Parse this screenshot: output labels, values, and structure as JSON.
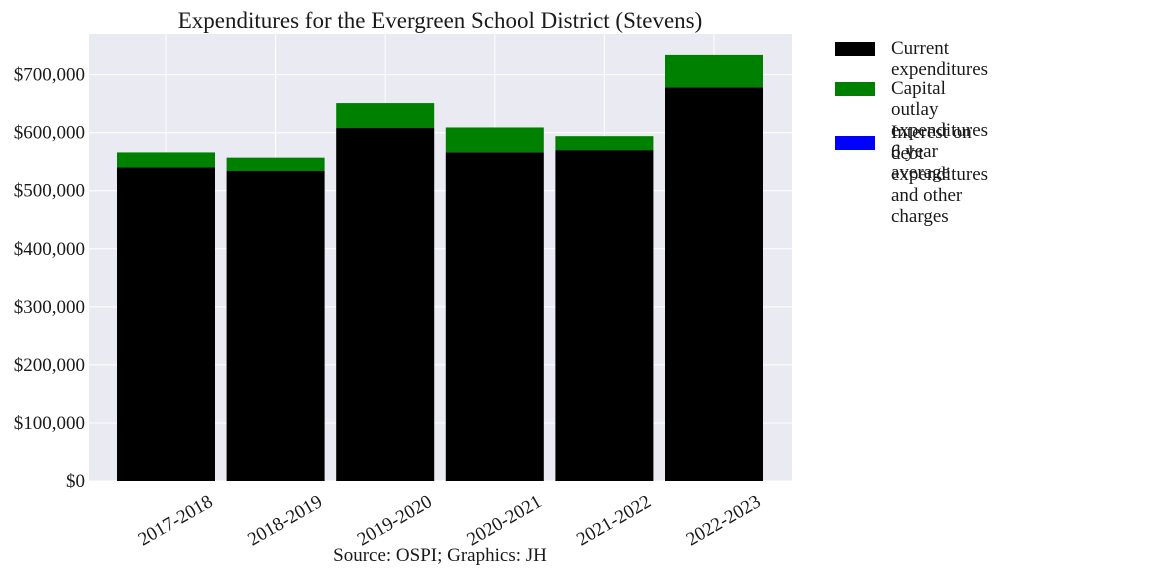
{
  "chart_data": {
    "type": "bar",
    "stacked": true,
    "title": "Expenditures for the Evergreen School District (Stevens)",
    "xlabel": "Source: OSPI; Graphics: JH",
    "ylabel": "",
    "categories": [
      "2017-2018",
      "2018-2019",
      "2019-2020",
      "2020-2021",
      "2021-2022",
      "2022-2023"
    ],
    "series": [
      {
        "name": "Current expenditures",
        "color": "#000000",
        "values": [
          540000,
          534000,
          608000,
          566000,
          570000,
          678000
        ]
      },
      {
        "name": "Capital outlay expenditures\n6 year average",
        "color": "#008000",
        "values": [
          26000,
          23000,
          43000,
          43000,
          24000,
          56000
        ]
      },
      {
        "name": "Interest on debt expenditures\nand other charges",
        "color": "#0000ff",
        "values": [
          0,
          0,
          0,
          0,
          0,
          0
        ]
      }
    ],
    "ylim": [
      0,
      770000
    ],
    "yticks": [
      0,
      100000,
      200000,
      300000,
      400000,
      500000,
      600000,
      700000
    ],
    "ytick_labels": [
      "$0",
      "$100,000",
      "$200,000",
      "$300,000",
      "$400,000",
      "$500,000",
      "$600,000",
      "$700,000"
    ],
    "grid": true,
    "legend_position": "outside-right"
  }
}
